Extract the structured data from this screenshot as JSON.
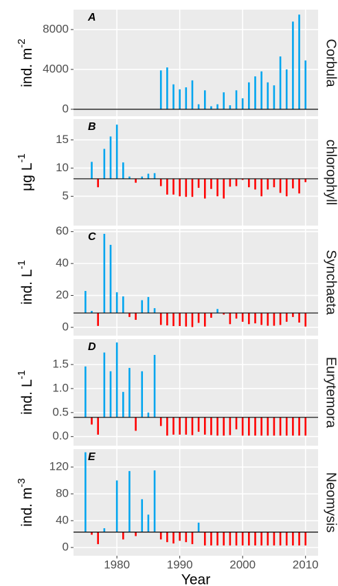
{
  "chart_data": [
    {
      "type": "bar",
      "panel": "A",
      "strip": "Corbula",
      "ylabel": {
        "text": "ind. m",
        "sup": "-2"
      },
      "x": [
        1975,
        1976,
        1977,
        1978,
        1979,
        1980,
        1981,
        1982,
        1983,
        1984,
        1985,
        1986,
        1987,
        1988,
        1989,
        1990,
        1991,
        1992,
        1993,
        1994,
        1995,
        1996,
        1997,
        1998,
        1999,
        2000,
        2001,
        2002,
        2003,
        2004,
        2005,
        2006,
        2007,
        2008,
        2009,
        2010
      ],
      "values": [
        null,
        null,
        null,
        null,
        null,
        null,
        null,
        null,
        null,
        null,
        null,
        null,
        3900,
        4200,
        2500,
        2000,
        2200,
        2900,
        500,
        1900,
        300,
        500,
        1700,
        400,
        1900,
        1100,
        2700,
        3300,
        3800,
        2700,
        2400,
        5300,
        4000,
        8800,
        9500,
        4900
      ],
      "baseline": 0,
      "color_above": "#00a5ef",
      "color_below": "#ff0000",
      "xlim": [
        1973.1,
        2012
      ],
      "xticks": [
        1980,
        1990,
        2000,
        2010
      ],
      "ylim": [
        -700,
        10000
      ],
      "yticks": [
        0,
        4000,
        8000
      ],
      "grid": true
    },
    {
      "type": "bar",
      "panel": "B",
      "strip": "chlorophyll",
      "ylabel": {
        "text": "μg L",
        "sup": "-1"
      },
      "x": [
        1975,
        1976,
        1977,
        1978,
        1979,
        1980,
        1981,
        1982,
        1983,
        1984,
        1985,
        1986,
        1987,
        1988,
        1989,
        1990,
        1991,
        1992,
        1993,
        1994,
        1995,
        1996,
        1997,
        1998,
        1999,
        2000,
        2001,
        2002,
        2003,
        2004,
        2005,
        2006,
        2007,
        2008,
        2009,
        2010
      ],
      "values": [
        null,
        11.1,
        6.6,
        13.4,
        15.6,
        17.7,
        11.0,
        8.5,
        7.4,
        8.5,
        9.0,
        9.1,
        6.8,
        5.3,
        5.3,
        5.0,
        4.9,
        4.9,
        6.5,
        4.6,
        6.3,
        5.0,
        4.6,
        6.7,
        6.8,
        7.9,
        6.6,
        6.2,
        5.0,
        6.2,
        6.6,
        5.6,
        5.0,
        6.4,
        5.5,
        7.5
      ],
      "baseline": 8.1,
      "color_above": "#00a5ef",
      "color_below": "#ff0000",
      "xlim": [
        1973.1,
        2012
      ],
      "xticks": [
        1980,
        1990,
        2000,
        2010
      ],
      "ylim": [
        -0.2,
        18.7
      ],
      "yticks": [
        5,
        10,
        15
      ],
      "grid": true
    },
    {
      "type": "bar",
      "panel": "C",
      "strip": "Synchaeta",
      "ylabel": {
        "text": "ind. L",
        "sup": "-1"
      },
      "x": [
        1975,
        1976,
        1977,
        1978,
        1979,
        1980,
        1981,
        1982,
        1983,
        1984,
        1985,
        1986,
        1987,
        1988,
        1989,
        1990,
        1991,
        1992,
        1993,
        1994,
        1995,
        1996,
        1997,
        1998,
        1999,
        2000,
        2001,
        2002,
        2003,
        2004,
        2005,
        2006,
        2007,
        2008,
        2009,
        2010
      ],
      "values": [
        22.8,
        10.3,
        0.9,
        58.6,
        51.7,
        22,
        19.4,
        6.5,
        4.7,
        17,
        19,
        12,
        1.5,
        1.2,
        0.8,
        0.8,
        0.5,
        0.2,
        2.8,
        0.5,
        6,
        11.5,
        8,
        2,
        5.5,
        3.5,
        2,
        2.5,
        1.5,
        1,
        1,
        1.5,
        3.5,
        6.5,
        3,
        0.5
      ],
      "baseline": 9,
      "color_above": "#00a5ef",
      "color_below": "#ff0000",
      "xlim": [
        1973.1,
        2012
      ],
      "xticks": [
        1980,
        1990,
        2000,
        2010
      ],
      "ylim": [
        -5.2,
        61.6
      ],
      "yticks": [
        0,
        20,
        40,
        60
      ],
      "grid": true
    },
    {
      "type": "bar",
      "panel": "D",
      "strip": "Eurytemora",
      "ylabel": {
        "text": "ind. L",
        "sup": "-1"
      },
      "x": [
        1975,
        1976,
        1977,
        1978,
        1979,
        1980,
        1981,
        1982,
        1983,
        1984,
        1985,
        1986,
        1987,
        1988,
        1989,
        1990,
        1991,
        1992,
        1993,
        1994,
        1995,
        1996,
        1997,
        1998,
        1999,
        2000,
        2001,
        2002,
        2003,
        2004,
        2005,
        2006,
        2007,
        2008,
        2009,
        2010
      ],
      "values": [
        1.46,
        0.25,
        0.04,
        1.75,
        1.36,
        1.96,
        0.93,
        1.43,
        0.12,
        1.36,
        0.5,
        1.7,
        0.22,
        0.02,
        0.04,
        0.04,
        0.04,
        0.03,
        0.1,
        0.04,
        0.03,
        0.02,
        0.02,
        0.03,
        0.15,
        0.02,
        0.02,
        0.02,
        0.02,
        0.02,
        0.02,
        0.02,
        0.02,
        0.02,
        0.02,
        0.02
      ],
      "baseline": 0.4,
      "color_above": "#00a5ef",
      "color_below": "#ff0000",
      "xlim": [
        1973.1,
        2012
      ],
      "xticks": [
        1980,
        1990,
        2000,
        2010
      ],
      "ylim": [
        -0.19,
        2.03
      ],
      "yticks": [
        {
          "value": 0,
          "label": "0.0"
        },
        0.5,
        {
          "value": 1,
          "label": "1.0"
        },
        1.5
      ],
      "grid": true
    },
    {
      "type": "bar",
      "panel": "E",
      "strip": "Neomysis",
      "ylabel": {
        "text": "ind. m",
        "sup": "-3"
      },
      "xlabel": "Year",
      "x": [
        1975,
        1976,
        1977,
        1978,
        1979,
        1980,
        1981,
        1982,
        1983,
        1984,
        1985,
        1986,
        1987,
        1988,
        1989,
        1990,
        1991,
        1992,
        1993,
        1994,
        1995,
        1996,
        1997,
        1998,
        1999,
        2000,
        2001,
        2002,
        2003,
        2004,
        2005,
        2006,
        2007,
        2008,
        2009,
        2010
      ],
      "values": [
        142,
        19,
        5,
        28.7,
        null,
        100,
        12,
        114,
        17,
        72,
        49,
        115,
        12,
        8,
        6,
        10,
        8,
        5,
        37,
        3,
        3,
        3,
        3,
        3,
        3,
        3,
        3,
        3,
        3,
        3,
        3,
        3,
        3,
        3,
        3,
        3
      ],
      "baseline": 23,
      "color_above": "#00a5ef",
      "color_below": "#ff0000",
      "xlim": [
        1973.1,
        2012
      ],
      "xticks": [
        1980,
        1990,
        2000,
        2010
      ],
      "ylim": [
        -12.3,
        146.7
      ],
      "yticks": [
        0,
        40,
        80,
        120
      ],
      "grid": true,
      "show_xticklabels": true
    }
  ]
}
